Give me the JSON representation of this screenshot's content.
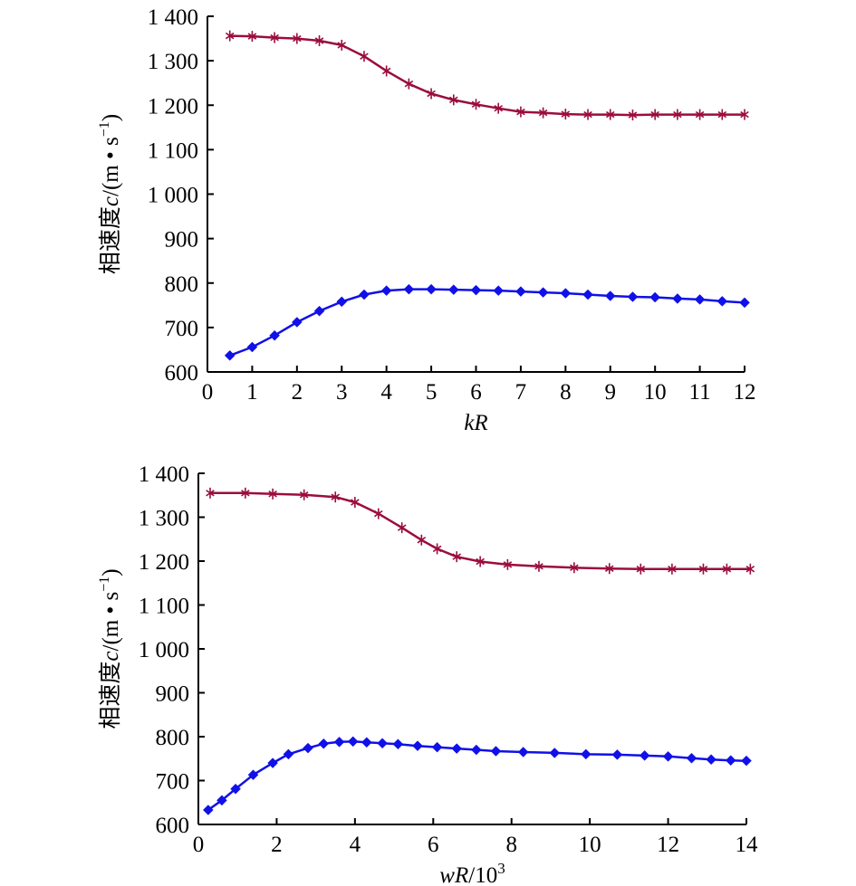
{
  "chart_data": [
    {
      "type": "line",
      "title": "",
      "xlabel": "kR",
      "ylabel": "相速度c/(m • s⁻¹)",
      "xlim": [
        0,
        12
      ],
      "ylim": [
        600,
        1400
      ],
      "xticks": [
        "0",
        "1",
        "2",
        "3",
        "4",
        "5",
        "6",
        "7",
        "8",
        "9",
        "10",
        "11",
        "12"
      ],
      "yticks": [
        "600",
        "700",
        "800",
        "900",
        "1 000",
        "1 100",
        "1 200",
        "1 300",
        "1 400"
      ],
      "ylabel_parts": {
        "prefix": "相速度",
        "var": "c",
        "unit_open": "/(m • s",
        "exp": "−1",
        "unit_close": ")"
      },
      "grid": false,
      "series": [
        {
          "color": "#9b0d3d",
          "marker": "asterisk",
          "x": [
            0.5,
            1,
            1.5,
            2,
            2.5,
            3,
            3.5,
            4,
            4.5,
            5,
            5.5,
            6,
            6.5,
            7,
            7.5,
            8,
            8.5,
            9,
            9.5,
            10,
            10.5,
            11,
            11.5,
            12
          ],
          "values": [
            1356,
            1355,
            1352,
            1350,
            1345,
            1335,
            1310,
            1277,
            1248,
            1226,
            1212,
            1202,
            1193,
            1185,
            1183,
            1180,
            1179,
            1179,
            1178,
            1179,
            1179,
            1179,
            1179,
            1179
          ]
        },
        {
          "color": "#1010e8",
          "marker": "diamond",
          "x": [
            0.5,
            1,
            1.5,
            2,
            2.5,
            3,
            3.5,
            4,
            4.5,
            5,
            5.5,
            6,
            6.5,
            7,
            7.5,
            8,
            8.5,
            9,
            9.5,
            10,
            10.5,
            11,
            11.5,
            12
          ],
          "values": [
            637,
            656,
            682,
            712,
            737,
            758,
            774,
            783,
            786,
            786,
            785,
            784,
            783,
            781,
            779,
            777,
            774,
            771,
            769,
            768,
            765,
            763,
            759,
            756
          ]
        }
      ]
    },
    {
      "type": "line",
      "title": "",
      "xlabel": "wR/10³",
      "ylabel": "相速度c/(m • s⁻¹)",
      "xlim": [
        0,
        14
      ],
      "ylim": [
        600,
        1400
      ],
      "xticks": [
        "0",
        "2",
        "4",
        "6",
        "8",
        "10",
        "12",
        "14"
      ],
      "yticks": [
        "600",
        "700",
        "800",
        "900",
        "1 000",
        "1 100",
        "1 200",
        "1 300",
        "1 400"
      ],
      "xlabel_parts": {
        "var": "wR",
        "base": "/10",
        "exp": "3"
      },
      "ylabel_parts": {
        "prefix": "相速度",
        "var": "c",
        "unit_open": "/(m • s",
        "exp": "−1",
        "unit_close": ")"
      },
      "grid": false,
      "series": [
        {
          "color": "#9b0d3d",
          "marker": "asterisk",
          "x": [
            0.3,
            1.2,
            1.9,
            2.7,
            3.5,
            4.0,
            4.6,
            5.2,
            5.7,
            6.1,
            6.6,
            7.2,
            7.9,
            8.7,
            9.6,
            10.5,
            11.3,
            12.1,
            12.9,
            13.5,
            14.1
          ],
          "values": [
            1355,
            1355,
            1353,
            1351,
            1346,
            1334,
            1308,
            1276,
            1248,
            1228,
            1210,
            1199,
            1192,
            1188,
            1185,
            1183,
            1182,
            1182,
            1182,
            1182,
            1182
          ]
        },
        {
          "color": "#1010e8",
          "marker": "diamond",
          "x": [
            0.25,
            0.6,
            0.95,
            1.4,
            1.9,
            2.3,
            2.8,
            3.2,
            3.6,
            3.95,
            4.3,
            4.7,
            5.1,
            5.6,
            6.1,
            6.6,
            7.1,
            7.6,
            8.3,
            9.1,
            9.9,
            10.7,
            11.4,
            12.0,
            12.6,
            13.1,
            13.6,
            14.0
          ],
          "values": [
            633,
            655,
            681,
            713,
            740,
            760,
            774,
            784,
            788,
            789,
            787,
            785,
            783,
            779,
            776,
            773,
            770,
            767,
            765,
            763,
            760,
            759,
            757,
            755,
            751,
            748,
            746,
            745
          ]
        }
      ]
    }
  ]
}
